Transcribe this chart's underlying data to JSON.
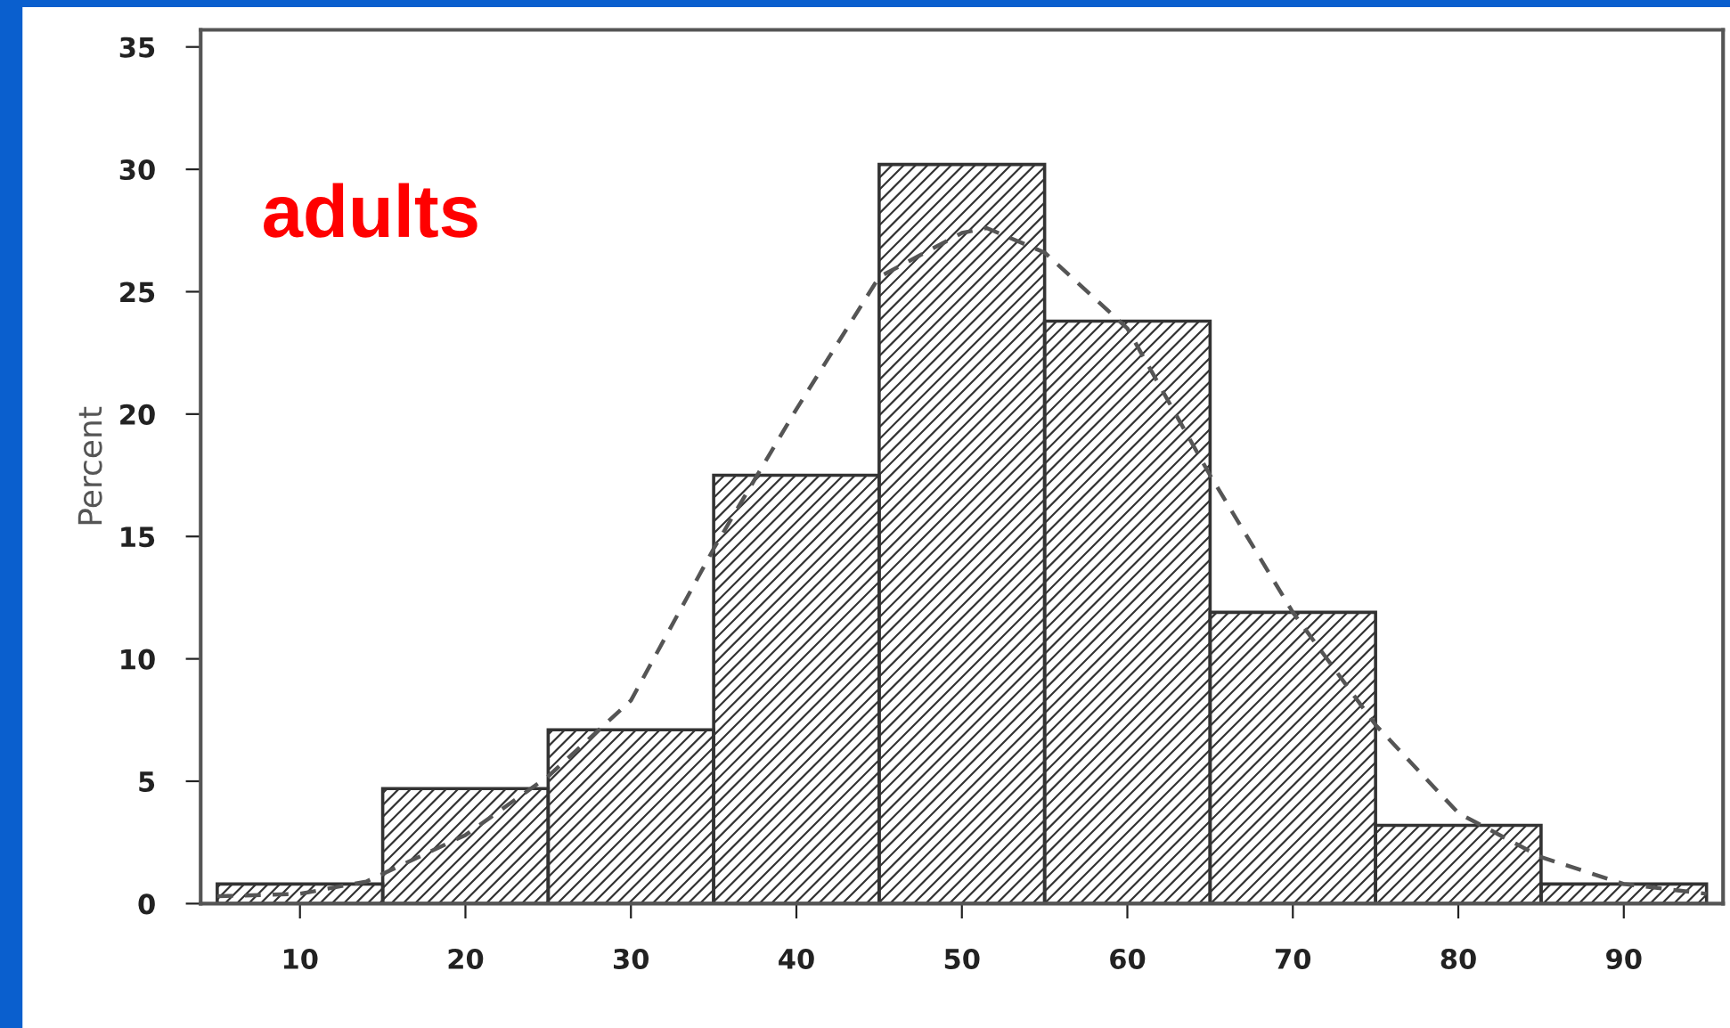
{
  "chart_data": {
    "type": "histogram",
    "ylabel": "Percent",
    "annotations": [
      "adults"
    ],
    "xlim": [
      4,
      96
    ],
    "ylim": [
      0,
      35.7
    ],
    "xticks": [
      10,
      20,
      30,
      40,
      50,
      60,
      70,
      80,
      90
    ],
    "yticks": [
      0,
      5,
      10,
      15,
      20,
      25,
      30,
      35
    ],
    "grid": false,
    "legend": false,
    "series": [
      {
        "bins": [
          5,
          15,
          25,
          35,
          45,
          55,
          65,
          75,
          85,
          95
        ],
        "values": [
          0.8,
          4.7,
          7.1,
          17.5,
          30.2,
          23.8,
          11.9,
          3.2,
          0.8
        ],
        "color": "#333333"
      },
      {
        "type": "line",
        "line_style": "dashed",
        "color": "#555555",
        "x": [
          5,
          10,
          14,
          20,
          25,
          30,
          35,
          40,
          45,
          50,
          51.5,
          55,
          60,
          65,
          70,
          75,
          80,
          85,
          90,
          95
        ],
        "values": [
          0.3,
          0.4,
          0.9,
          2.8,
          5.2,
          8.3,
          14.5,
          20.2,
          25.6,
          27.4,
          27.6,
          26.6,
          23.5,
          17.5,
          11.9,
          7.3,
          3.7,
          1.9,
          0.8,
          0.4
        ]
      }
    ]
  }
}
